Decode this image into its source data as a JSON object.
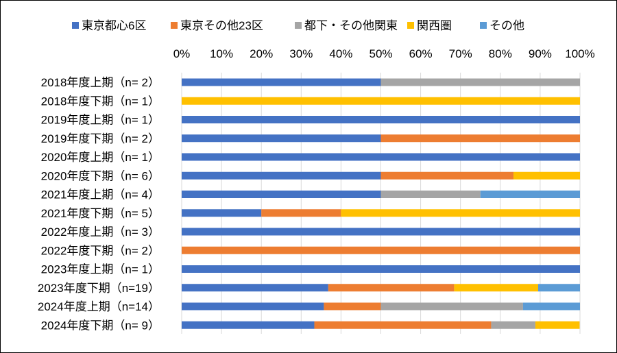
{
  "chart_data": {
    "type": "bar",
    "orientation": "horizontal",
    "stacked": "percent",
    "xlim": [
      0,
      100
    ],
    "x_tick_labels": [
      "0%",
      "10%",
      "20%",
      "30%",
      "40%",
      "50%",
      "60%",
      "70%",
      "80%",
      "90%",
      "100%"
    ],
    "grid": "vertical",
    "legend_position": "top",
    "categories": [
      "2018年度上期（n=  2）",
      "2018年度下期（n=  1）",
      "2019年度上期（n=  1）",
      "2019年度下期（n=  2）",
      "2020年度上期（n=  1）",
      "2020年度下期（n=  6）",
      "2021年度上期（n=  4）",
      "2021年度下期（n=  5）",
      "2022年度上期（n=  3）",
      "2022年度下期（n=  2）",
      "2023年度上期（n=  1）",
      "2023年度下期（n=19）",
      "2024年度上期（n=14）",
      "2024年度下期（n=  9）"
    ],
    "series": [
      {
        "name": "東京都心6区",
        "color": "#4472C4",
        "values": [
          50,
          0,
          100,
          50,
          100,
          50,
          50,
          20,
          100,
          0,
          100,
          36.8,
          35.7,
          33.3
        ]
      },
      {
        "name": "東京その他23区",
        "color": "#ED7D31",
        "values": [
          0,
          0,
          0,
          50,
          0,
          33.3,
          0,
          20,
          0,
          100,
          0,
          31.6,
          14.3,
          44.4
        ]
      },
      {
        "name": "都下・その他関東",
        "color": "#A5A5A5",
        "values": [
          50,
          0,
          0,
          0,
          0,
          0,
          25,
          0,
          0,
          0,
          0,
          0,
          35.7,
          11.1
        ]
      },
      {
        "name": "関西圏",
        "color": "#FFC000",
        "values": [
          0,
          100,
          0,
          0,
          0,
          16.7,
          0,
          60,
          0,
          0,
          0,
          21.1,
          0,
          11.1
        ]
      },
      {
        "name": "その他",
        "color": "#5B9BD5",
        "values": [
          0,
          0,
          0,
          0,
          0,
          0,
          25,
          0,
          0,
          0,
          0,
          10.5,
          14.3,
          0
        ]
      }
    ]
  }
}
